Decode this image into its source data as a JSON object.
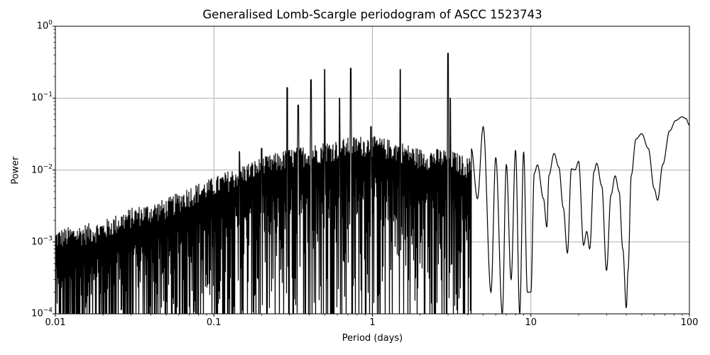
{
  "title": "Generalised Lomb-Scargle periodogram of ASCC 1523743",
  "xlabel": "Period (days)",
  "ylabel": "Power",
  "xticks": [
    {
      "label": "0.01",
      "value": 0.01
    },
    {
      "label": "0.1",
      "value": 0.1
    },
    {
      "label": "1",
      "value": 1
    },
    {
      "label": "10",
      "value": 10
    },
    {
      "label": "100",
      "value": 100
    }
  ],
  "yticks": [
    {
      "base": "10",
      "exp": "0",
      "value": 1
    },
    {
      "base": "10",
      "exp": "−1",
      "value": 0.1
    },
    {
      "base": "10",
      "exp": "−2",
      "value": 0.01
    },
    {
      "base": "10",
      "exp": "−3",
      "value": 0.001
    },
    {
      "base": "10",
      "exp": "−4",
      "value": 0.0001
    }
  ],
  "colors": {
    "line": "#000000",
    "grid": "#b0b0b0",
    "axes": "#000000",
    "background": "#ffffff"
  },
  "chart_data": {
    "type": "line",
    "title": "Generalised Lomb-Scargle periodogram of ASCC 1523743",
    "xlabel": "Period (days)",
    "ylabel": "Power",
    "xscale": "log",
    "yscale": "log",
    "xlim": [
      0.01,
      100
    ],
    "ylim": [
      0.0001,
      1
    ],
    "grid": true,
    "legend": null,
    "envelope": {
      "description": "Upper envelope of dense noise-like periodogram (approx.), floor extends below 1e-4",
      "period": [
        0.01,
        0.02,
        0.03,
        0.05,
        0.07,
        0.1,
        0.15,
        0.2,
        0.3,
        0.5,
        0.8,
        1.0,
        1.5,
        2.0,
        3.0,
        4.0
      ],
      "power": [
        0.0015,
        0.002,
        0.003,
        0.004,
        0.006,
        0.008,
        0.012,
        0.015,
        0.02,
        0.025,
        0.03,
        0.03,
        0.025,
        0.02,
        0.02,
        0.015
      ]
    },
    "peaks": [
      {
        "period": 0.145,
        "power": 0.018
      },
      {
        "period": 0.2,
        "power": 0.02
      },
      {
        "period": 0.29,
        "power": 0.14
      },
      {
        "period": 0.34,
        "power": 0.08
      },
      {
        "period": 0.41,
        "power": 0.18
      },
      {
        "period": 0.5,
        "power": 0.25
      },
      {
        "period": 0.62,
        "power": 0.1
      },
      {
        "period": 0.73,
        "power": 0.26
      },
      {
        "period": 0.98,
        "power": 0.04
      },
      {
        "period": 1.5,
        "power": 0.25
      },
      {
        "period": 3.0,
        "power": 0.42
      },
      {
        "period": 3.1,
        "power": 0.1
      }
    ],
    "smooth_tail": {
      "period": [
        4.2,
        4.6,
        5.0,
        5.6,
        6.0,
        6.6,
        7.0,
        7.5,
        8.0,
        8.5,
        9.0,
        9.5,
        10.0,
        10.5,
        11.0,
        12.0,
        12.6,
        13.0,
        14.0,
        15.0,
        16.0,
        17.0,
        18.0,
        19.0,
        20.0,
        21.5,
        22.5,
        23.5,
        25.0,
        26.0,
        28.0,
        30.0,
        32.0,
        34.0,
        36.0,
        38.0,
        40.0,
        41.0,
        43.0,
        46.0,
        50.0,
        55.0,
        60.0,
        63.0,
        68.0,
        75.0,
        82.0,
        90.0,
        95.0,
        100.0
      ],
      "power": [
        0.02,
        0.004,
        0.04,
        0.0002,
        0.015,
        0.0001,
        0.012,
        0.0003,
        0.019,
        0.0001,
        0.018,
        0.0002,
        0.0002,
        0.009,
        0.0118,
        0.004,
        0.0016,
        0.0085,
        0.017,
        0.011,
        0.003,
        0.0007,
        0.0104,
        0.0101,
        0.0132,
        0.0009,
        0.0014,
        0.0008,
        0.0095,
        0.0124,
        0.006,
        0.0004,
        0.0045,
        0.0083,
        0.005,
        0.0008,
        0.00012,
        0.0004,
        0.0085,
        0.027,
        0.032,
        0.02,
        0.0055,
        0.0038,
        0.012,
        0.035,
        0.049,
        0.055,
        0.052,
        0.042
      ]
    }
  }
}
